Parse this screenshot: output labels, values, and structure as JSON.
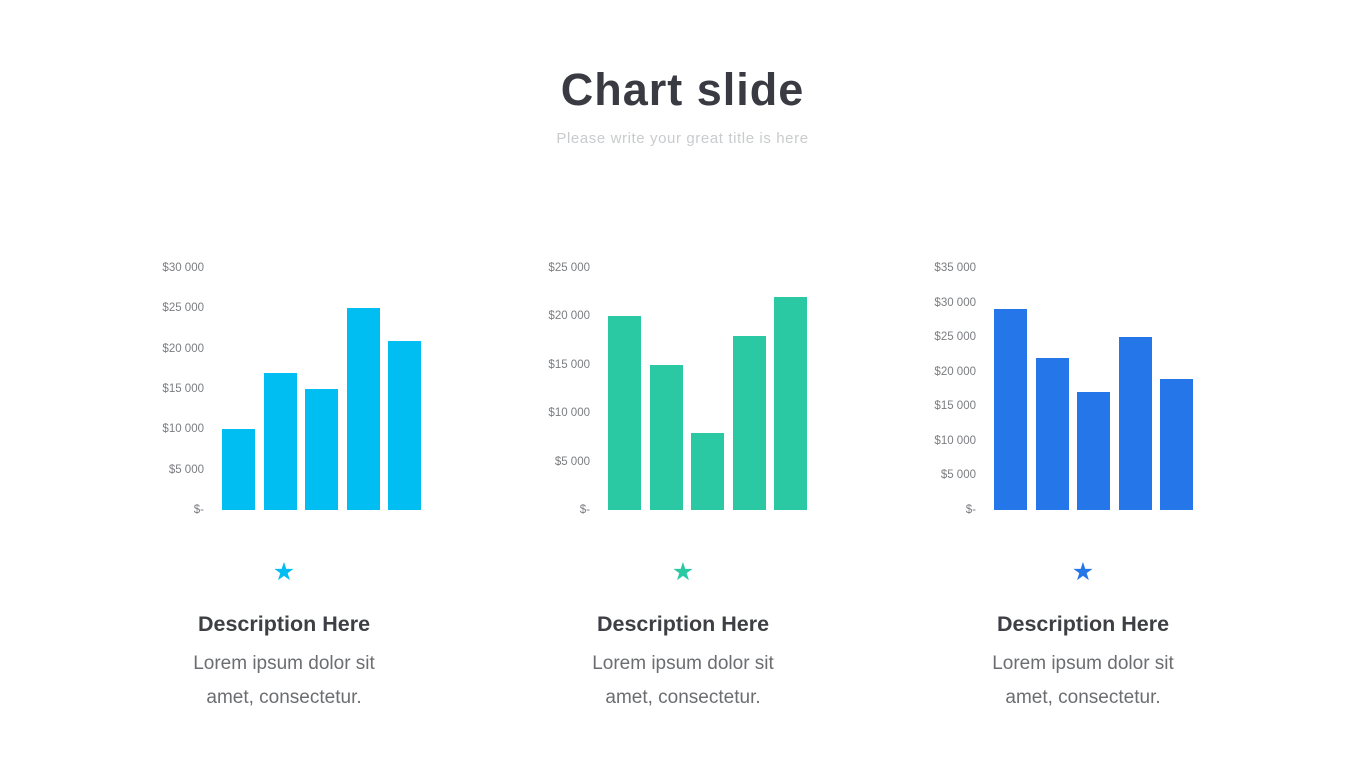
{
  "slide": {
    "title": "Chart slide",
    "subtitle": "Please write your great title is here"
  },
  "chart_data": [
    {
      "type": "bar",
      "title": "",
      "xlabel": "",
      "ylabel": "",
      "categories": [
        "",
        "",
        "",
        "",
        ""
      ],
      "values": [
        10000,
        17000,
        15000,
        25000,
        21000
      ],
      "ylim": [
        0,
        30000
      ],
      "ytick_step": 5000,
      "ytick_labels": [
        "$30 000",
        "$25 000",
        "$20 000",
        "$15 000",
        "$10 000",
        "$5 000",
        "$-"
      ],
      "bar_color": "#00bdf2",
      "grid": false,
      "legend": false
    },
    {
      "type": "bar",
      "title": "",
      "xlabel": "",
      "ylabel": "",
      "categories": [
        "",
        "",
        "",
        "",
        ""
      ],
      "values": [
        20000,
        15000,
        8000,
        18000,
        22000
      ],
      "ylim": [
        0,
        25000
      ],
      "ytick_step": 5000,
      "ytick_labels": [
        "$25 000",
        "$20 000",
        "$15 000",
        "$10 000",
        "$5 000",
        "$-"
      ],
      "bar_color": "#2bc9a3",
      "grid": false,
      "legend": false
    },
    {
      "type": "bar",
      "title": "",
      "xlabel": "",
      "ylabel": "",
      "categories": [
        "",
        "",
        "",
        "",
        ""
      ],
      "values": [
        29000,
        22000,
        17000,
        25000,
        19000
      ],
      "ylim": [
        0,
        35000
      ],
      "ytick_step": 5000,
      "ytick_labels": [
        "$35 000",
        "$30 000",
        "$25 000",
        "$20 000",
        "$15 000",
        "$10 000",
        "$5 000",
        "$-"
      ],
      "bar_color": "#2577e9",
      "grid": false,
      "legend": false
    }
  ],
  "sections": [
    {
      "icon": "star",
      "accent": "#00bdf2",
      "heading": "Description Here",
      "body": "Lorem ipsum dolor sit amet, consectetur."
    },
    {
      "icon": "star",
      "accent": "#2bc9a3",
      "heading": "Description Here",
      "body": "Lorem ipsum dolor sit amet, consectetur."
    },
    {
      "icon": "star",
      "accent": "#2577e9",
      "heading": "Description Here",
      "body": "Lorem ipsum dolor sit amet, consectetur."
    }
  ]
}
